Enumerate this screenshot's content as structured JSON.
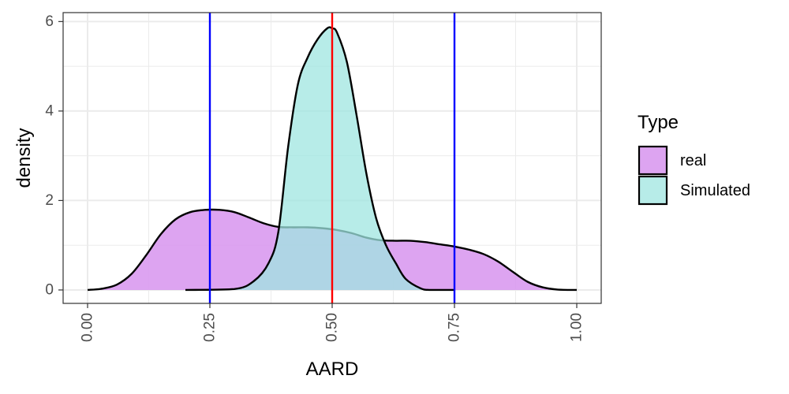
{
  "chart_data": {
    "type": "area",
    "subtype": "density",
    "xlabel": "AARD",
    "ylabel": "density",
    "xlim": [
      -0.05,
      1.05
    ],
    "ylim": [
      -0.3,
      6.2
    ],
    "x_ticks": [
      0.0,
      0.25,
      0.5,
      0.75,
      1.0
    ],
    "x_tick_labels": [
      "0.00",
      "0.25",
      "0.50",
      "0.75",
      "1.00"
    ],
    "y_ticks": [
      0,
      2,
      4,
      6
    ],
    "y_tick_labels": [
      "0",
      "2",
      "4",
      "6"
    ],
    "x_tick_label_rotation": -90,
    "grid": true,
    "theme": "bw",
    "legend": {
      "title": "Type",
      "position": "right",
      "entries": [
        "real",
        "Simulated"
      ]
    },
    "series": [
      {
        "name": "real",
        "color": "#d99af0",
        "opacity": 0.9,
        "x": [
          0.0,
          0.03,
          0.06,
          0.09,
          0.12,
          0.15,
          0.18,
          0.21,
          0.24,
          0.27,
          0.3,
          0.33,
          0.36,
          0.39,
          0.42,
          0.45,
          0.48,
          0.51,
          0.54,
          0.57,
          0.6,
          0.63,
          0.66,
          0.69,
          0.72,
          0.75,
          0.78,
          0.81,
          0.84,
          0.87,
          0.9,
          0.93,
          0.96,
          1.0
        ],
        "values": [
          0.0,
          0.03,
          0.12,
          0.36,
          0.78,
          1.25,
          1.58,
          1.74,
          1.79,
          1.79,
          1.74,
          1.62,
          1.49,
          1.41,
          1.4,
          1.4,
          1.38,
          1.34,
          1.27,
          1.17,
          1.11,
          1.1,
          1.1,
          1.07,
          1.02,
          0.97,
          0.9,
          0.8,
          0.63,
          0.4,
          0.18,
          0.06,
          0.01,
          0.0
        ]
      },
      {
        "name": "Simulated",
        "color": "#9fe6e0",
        "opacity": 0.75,
        "x": [
          0.2,
          0.3,
          0.34,
          0.37,
          0.39,
          0.41,
          0.43,
          0.45,
          0.47,
          0.49,
          0.5,
          0.51,
          0.53,
          0.55,
          0.57,
          0.59,
          0.61,
          0.63,
          0.65,
          0.68,
          0.7,
          0.75
        ],
        "values": [
          0.0,
          0.02,
          0.2,
          0.6,
          1.3,
          3.2,
          4.6,
          5.2,
          5.6,
          5.85,
          5.85,
          5.75,
          5.1,
          3.9,
          2.6,
          1.6,
          1.0,
          0.6,
          0.25,
          0.04,
          0.0,
          0.0
        ]
      }
    ],
    "vlines": [
      {
        "x": 0.25,
        "color": "#0000ff"
      },
      {
        "x": 0.5,
        "color": "#ff0000"
      },
      {
        "x": 0.75,
        "color": "#0000ff"
      }
    ],
    "colors": {
      "outline": "#000000",
      "grid": "#ebebeb",
      "panel_border": "#333333"
    }
  }
}
